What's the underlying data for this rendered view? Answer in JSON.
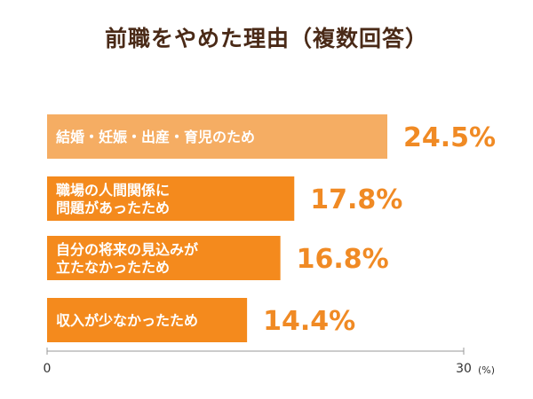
{
  "chart_data": {
    "type": "bar",
    "orientation": "horizontal",
    "title": "前職をやめた理由（複数回答）",
    "categories": [
      [
        "結婚・妊娠・出産・育児のため"
      ],
      [
        "職場の人間関係に",
        "問題があったため"
      ],
      [
        "自分の将来の見込みが",
        "立たなかったため"
      ],
      [
        "収入が少なかったため"
      ]
    ],
    "values": [
      24.5,
      17.8,
      16.8,
      14.4
    ],
    "value_labels": [
      "24.5%",
      "17.8%",
      "16.8%",
      "14.4%"
    ],
    "xlim": [
      0,
      30
    ],
    "x_ticks": [
      "0",
      "30"
    ],
    "x_unit": "(%)",
    "colors": {
      "bar_first": "#f5ad63",
      "bar_rest": "#f48a1d",
      "value_text": "#f08a24",
      "title_text": "#4a2a17",
      "axis": "#999999"
    },
    "grid": false,
    "legend": "none"
  }
}
